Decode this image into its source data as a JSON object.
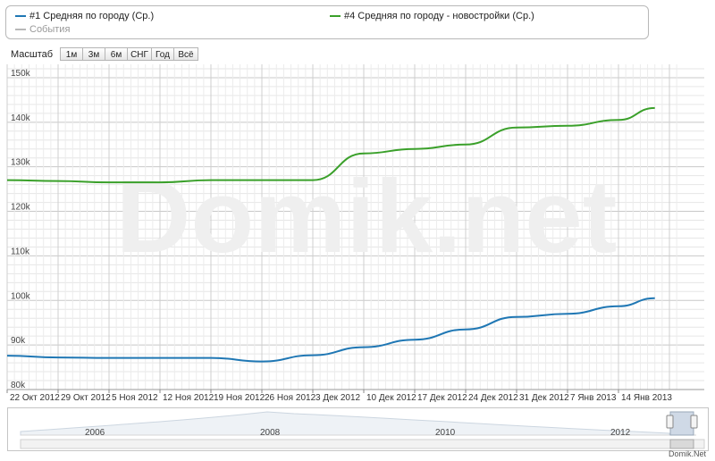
{
  "legend": {
    "items": [
      {
        "label": "#1 Средняя по городу (Ср.)",
        "color": "#1f77b4"
      },
      {
        "label": "#4 Средняя по городу - новостройки (Ср.)",
        "color": "#3aa02a"
      },
      {
        "label": "События",
        "color": "#b8b8b8"
      }
    ]
  },
  "zoom": {
    "label": "Масштаб",
    "buttons": [
      "1м",
      "3м",
      "6м",
      "СНГ",
      "Год",
      "Всё"
    ]
  },
  "watermark": "Domik.net",
  "credit": "Domik.Net",
  "navigator": {
    "years": [
      "2006",
      "2008",
      "2010",
      "2012"
    ]
  },
  "chart_data": {
    "type": "line",
    "x": [
      "2012-10-22",
      "2012-10-29",
      "2012-11-05",
      "2012-11-12",
      "2012-11-19",
      "2012-11-26",
      "2012-12-03",
      "2012-12-10",
      "2012-12-17",
      "2012-12-24",
      "2012-12-31",
      "2013-01-07",
      "2013-01-14",
      "2013-01-19"
    ],
    "x_tick_labels": [
      "22 Окт 2012",
      "29 Окт 2012",
      "5 Ноя 2012",
      "12 Ноя 2012",
      "19 Ноя 2012",
      "26 Ноя 2012",
      "3 Дек 2012",
      "10 Дек 2012",
      "17 Дек 2012",
      "24 Дек 2012",
      "31 Дек 2012",
      "7 Янв 2013",
      "14 Янв 2013"
    ],
    "y_tick_labels": [
      "80k",
      "90k",
      "100k",
      "110k",
      "120k",
      "130k",
      "140k",
      "150k"
    ],
    "ylim": [
      80000,
      153000
    ],
    "grid": true,
    "series": [
      {
        "name": "#1 Средняя по городу (Ср.)",
        "color": "#1f77b4",
        "values": [
          87600,
          87200,
          87100,
          87100,
          87100,
          86300,
          87700,
          89500,
          91200,
          93500,
          96300,
          97000,
          98700,
          100500
        ]
      },
      {
        "name": "#4 Средняя по городу - новостройки (Ср.)",
        "color": "#3aa02a",
        "values": [
          127000,
          126800,
          126500,
          126500,
          127000,
          127000,
          127000,
          133000,
          134000,
          135000,
          138800,
          139200,
          140500,
          143200
        ]
      }
    ]
  }
}
